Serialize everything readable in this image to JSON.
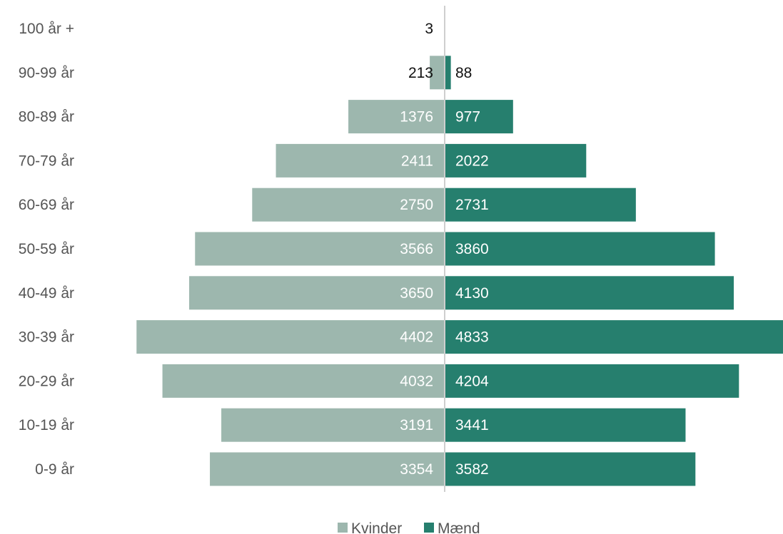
{
  "chart_data": {
    "type": "bar",
    "orientation": "horizontal-diverging",
    "categories": [
      "100 år +",
      "90-99 år",
      "80-89 år",
      "70-79 år",
      "60-69 år",
      "50-59 år",
      "40-49 år",
      "30-39 år",
      "20-29 år",
      "10-19 år",
      "0-9 år"
    ],
    "series": [
      {
        "name": "Kvinder",
        "side": "left",
        "color": "#9db7ae",
        "values": [
          3,
          213,
          1376,
          2411,
          2750,
          3566,
          3650,
          4402,
          4032,
          3191,
          3354
        ]
      },
      {
        "name": "Mænd",
        "side": "right",
        "color": "#267f6e",
        "values": [
          0,
          88,
          977,
          2022,
          2731,
          3860,
          4130,
          4833,
          4204,
          3441,
          3582
        ]
      }
    ],
    "value_labels": {
      "left": [
        "3",
        "213",
        "1376",
        "2411",
        "2750",
        "3566",
        "3650",
        "4402",
        "4032",
        "3191",
        "3354"
      ],
      "right": [
        "",
        "88",
        "977",
        "2022",
        "2731",
        "3860",
        "4130",
        "4833",
        "4204",
        "3441",
        "3582"
      ]
    },
    "xlim": [
      0,
      4833
    ],
    "grid": false,
    "legend": {
      "placement": "bottom-center",
      "items": [
        "Kvinder",
        "Mænd"
      ]
    },
    "title": "",
    "xlabel": "",
    "ylabel": ""
  }
}
